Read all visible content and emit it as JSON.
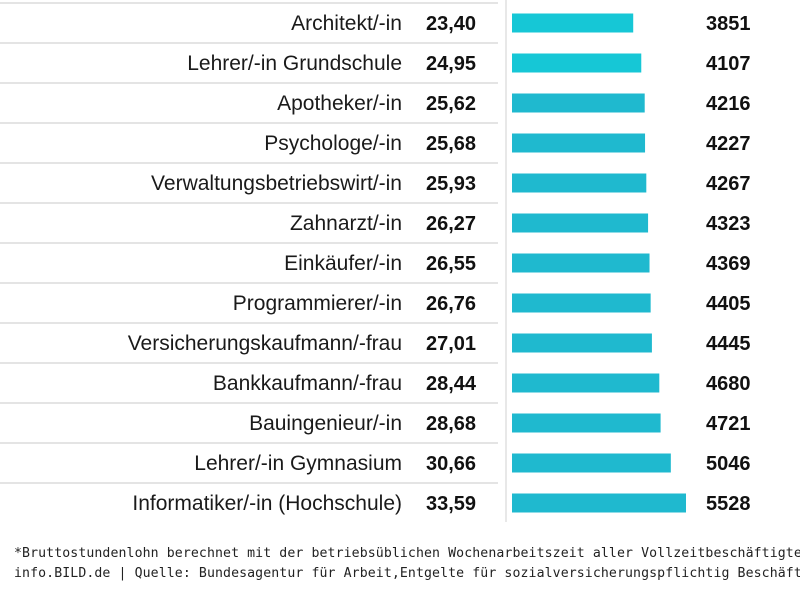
{
  "chart_data": {
    "type": "bar",
    "orientation": "horizontal",
    "categories": [
      "Architekt/-in",
      "Lehrer/-in Grundschule",
      "Apotheker/-in",
      "Psychologe/-in",
      "Verwaltungsbetriebswirt/-in",
      "Zahnarzt/-in",
      "Einkäufer/-in",
      "Programmierer/-in",
      "Versicherungskaufmann/-frau",
      "Bankkaufmann/-frau",
      "Bauingenieur/-in",
      "Lehrer/-in Gymnasium",
      "Informatiker/-in (Hochschule)"
    ],
    "hourly_labels": [
      "23,40",
      "24,95",
      "25,62",
      "25,68",
      "25,93",
      "26,27",
      "26,55",
      "26,76",
      "27,01",
      "28,44",
      "28,68",
      "30,66",
      "33,59"
    ],
    "hourly_values": [
      23.4,
      24.95,
      25.62,
      25.68,
      25.93,
      26.27,
      26.55,
      26.76,
      27.01,
      28.44,
      28.68,
      30.66,
      33.59
    ],
    "values": [
      3851,
      4107,
      4216,
      4227,
      4267,
      4323,
      4369,
      4405,
      4445,
      4680,
      4721,
      5046,
      5528
    ],
    "bar_color": "#1fb9cf",
    "bar_color_light": "#16c7d6",
    "separator_color": "#c8c8c8"
  },
  "footnotes": {
    "line1": "*Bruttostundenlohn berechnet mit der betriebsüblichen Wochenarbeitszeit aller Vollzeitbeschäftigten",
    "line2": "info.BILD.de | Quelle: Bundesagentur für Arbeit,Entgelte für sozialversicherungspflichtig Beschäftigte"
  }
}
